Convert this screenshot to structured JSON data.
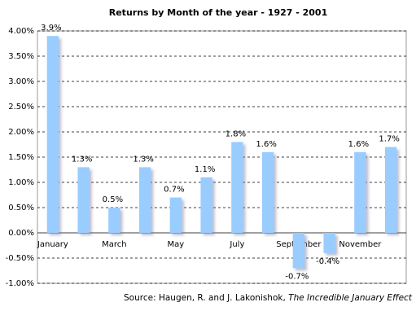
{
  "chart_data": {
    "type": "bar",
    "title": "Returns by Month of the year - 1927 - 2001",
    "categories": [
      "January",
      null,
      "March",
      null,
      "May",
      null,
      "July",
      null,
      "September",
      null,
      "November",
      null
    ],
    "values": [
      3.9,
      1.3,
      0.5,
      1.3,
      0.7,
      1.1,
      1.8,
      1.6,
      -0.7,
      -0.4,
      1.6,
      1.7
    ],
    "value_labels": [
      "3.9%",
      "1.3%",
      "0.5%",
      "1.3%",
      "0.7%",
      "1.1%",
      "1.8%",
      "1.6%",
      "-0.7%",
      "-0.4%",
      "1.6%",
      "1.7%"
    ],
    "color": "#99ccff",
    "ylim": [
      -1,
      4
    ],
    "yticks": [
      {
        "value": -1,
        "label": "-1.00%"
      },
      {
        "value": -0.5,
        "label": "-0.50%"
      },
      {
        "value": 0,
        "label": "0.00%"
      },
      {
        "value": 0.5,
        "label": "0.50%"
      },
      {
        "value": 1,
        "label": "1.00%"
      },
      {
        "value": 1.5,
        "label": "1.50%"
      },
      {
        "value": 2,
        "label": "2.00%"
      },
      {
        "value": 2.5,
        "label": "2.50%"
      },
      {
        "value": 3,
        "label": "3.00%"
      },
      {
        "value": 3.5,
        "label": "3.50%"
      },
      {
        "value": 4,
        "label": "4.00%"
      }
    ],
    "grid": true,
    "source": "Source: Haugen, R. and J. Lakonishok,",
    "source_title": "The Incredible January Effect"
  }
}
